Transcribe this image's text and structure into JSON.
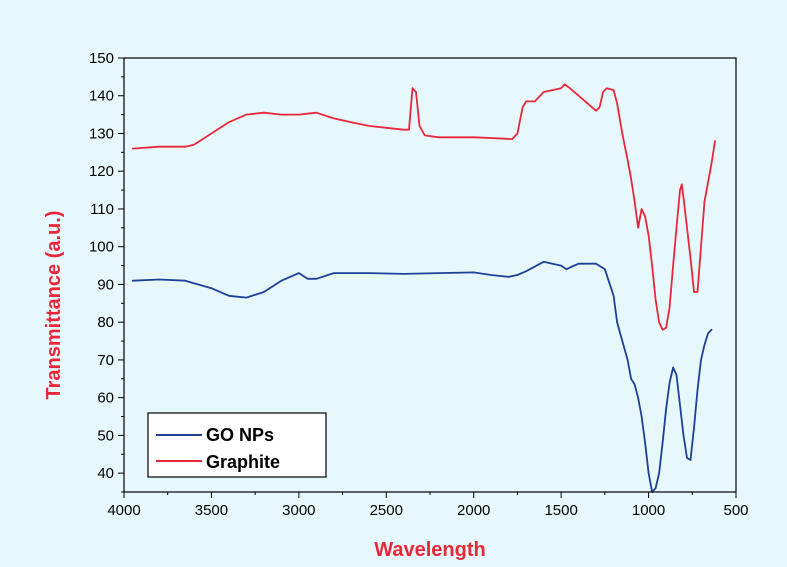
{
  "chart_data": {
    "type": "line",
    "title": "",
    "xlabel": "Wavelength",
    "ylabel": "Transmittance (a.u.)",
    "label_color": "#e8283a",
    "xlim": [
      4000,
      500
    ],
    "ylim": [
      35,
      150
    ],
    "x_ticks": [
      4000,
      3500,
      3000,
      2500,
      2000,
      1500,
      1000,
      500
    ],
    "x_tick_labels": [
      "4000",
      "3500",
      "3000",
      "2500",
      "2000",
      "1500",
      "1000",
      "500"
    ],
    "y_ticks": [
      40,
      50,
      60,
      70,
      80,
      90,
      100,
      110,
      120,
      130,
      140,
      150
    ],
    "y_tick_labels": [
      "40",
      "50",
      "60",
      "70",
      "80",
      "90",
      "100",
      "110",
      "120",
      "130",
      "140",
      "150"
    ],
    "legend_position": "bottom-left",
    "series": [
      {
        "name": "GO NPs",
        "color": "#1f3f96",
        "points": [
          [
            3950,
            91
          ],
          [
            3800,
            91.3
          ],
          [
            3650,
            91
          ],
          [
            3500,
            89
          ],
          [
            3400,
            87
          ],
          [
            3300,
            86.5
          ],
          [
            3200,
            88
          ],
          [
            3100,
            91
          ],
          [
            3000,
            93
          ],
          [
            2950,
            91.5
          ],
          [
            2900,
            91.5
          ],
          [
            2800,
            93
          ],
          [
            2600,
            93
          ],
          [
            2400,
            92.8
          ],
          [
            2200,
            93
          ],
          [
            2000,
            93.2
          ],
          [
            1900,
            92.5
          ],
          [
            1800,
            92
          ],
          [
            1750,
            92.5
          ],
          [
            1700,
            93.5
          ],
          [
            1600,
            96
          ],
          [
            1550,
            95.5
          ],
          [
            1500,
            95
          ],
          [
            1470,
            94
          ],
          [
            1450,
            94.5
          ],
          [
            1400,
            95.5
          ],
          [
            1300,
            95.5
          ],
          [
            1250,
            94
          ],
          [
            1200,
            87
          ],
          [
            1180,
            80
          ],
          [
            1150,
            75
          ],
          [
            1120,
            70
          ],
          [
            1100,
            65
          ],
          [
            1080,
            63.5
          ],
          [
            1060,
            60
          ],
          [
            1040,
            55
          ],
          [
            1020,
            48
          ],
          [
            1000,
            40
          ],
          [
            980,
            35
          ],
          [
            960,
            36
          ],
          [
            940,
            40
          ],
          [
            920,
            48
          ],
          [
            900,
            57
          ],
          [
            880,
            64
          ],
          [
            860,
            68
          ],
          [
            840,
            66
          ],
          [
            820,
            58
          ],
          [
            800,
            50
          ],
          [
            780,
            44
          ],
          [
            760,
            43.5
          ],
          [
            740,
            52
          ],
          [
            720,
            62
          ],
          [
            700,
            70
          ],
          [
            680,
            74
          ],
          [
            660,
            77
          ],
          [
            640,
            78
          ]
        ]
      },
      {
        "name": "Graphite",
        "color": "#e8283a",
        "points": [
          [
            3950,
            126
          ],
          [
            3800,
            126.5
          ],
          [
            3700,
            126.5
          ],
          [
            3650,
            126.5
          ],
          [
            3600,
            127
          ],
          [
            3500,
            130
          ],
          [
            3400,
            133
          ],
          [
            3300,
            135
          ],
          [
            3200,
            135.5
          ],
          [
            3100,
            135
          ],
          [
            3000,
            135
          ],
          [
            2900,
            135.5
          ],
          [
            2800,
            134
          ],
          [
            2700,
            133
          ],
          [
            2600,
            132
          ],
          [
            2500,
            131.5
          ],
          [
            2400,
            131
          ],
          [
            2370,
            131
          ],
          [
            2350,
            142
          ],
          [
            2330,
            141
          ],
          [
            2310,
            132
          ],
          [
            2280,
            129.5
          ],
          [
            2200,
            129
          ],
          [
            2100,
            129
          ],
          [
            2000,
            129
          ],
          [
            1900,
            128.8
          ],
          [
            1780,
            128.5
          ],
          [
            1750,
            130
          ],
          [
            1720,
            137
          ],
          [
            1700,
            138.5
          ],
          [
            1650,
            138.5
          ],
          [
            1600,
            141
          ],
          [
            1500,
            142
          ],
          [
            1480,
            143
          ],
          [
            1450,
            142
          ],
          [
            1400,
            140
          ],
          [
            1350,
            138
          ],
          [
            1300,
            136
          ],
          [
            1280,
            137
          ],
          [
            1260,
            141
          ],
          [
            1240,
            142
          ],
          [
            1200,
            141.5
          ],
          [
            1180,
            138
          ],
          [
            1150,
            130
          ],
          [
            1120,
            123
          ],
          [
            1100,
            118
          ],
          [
            1080,
            112
          ],
          [
            1060,
            105
          ],
          [
            1040,
            110
          ],
          [
            1020,
            108
          ],
          [
            1000,
            103
          ],
          [
            980,
            95
          ],
          [
            960,
            86
          ],
          [
            940,
            80
          ],
          [
            920,
            78
          ],
          [
            900,
            78.5
          ],
          [
            880,
            84
          ],
          [
            860,
            95
          ],
          [
            840,
            105
          ],
          [
            820,
            115
          ],
          [
            810,
            116.5
          ],
          [
            800,
            113
          ],
          [
            780,
            105
          ],
          [
            760,
            97
          ],
          [
            740,
            88
          ],
          [
            720,
            88
          ],
          [
            700,
            100
          ],
          [
            680,
            112
          ],
          [
            660,
            117
          ],
          [
            640,
            122
          ],
          [
            620,
            128
          ]
        ]
      }
    ]
  }
}
